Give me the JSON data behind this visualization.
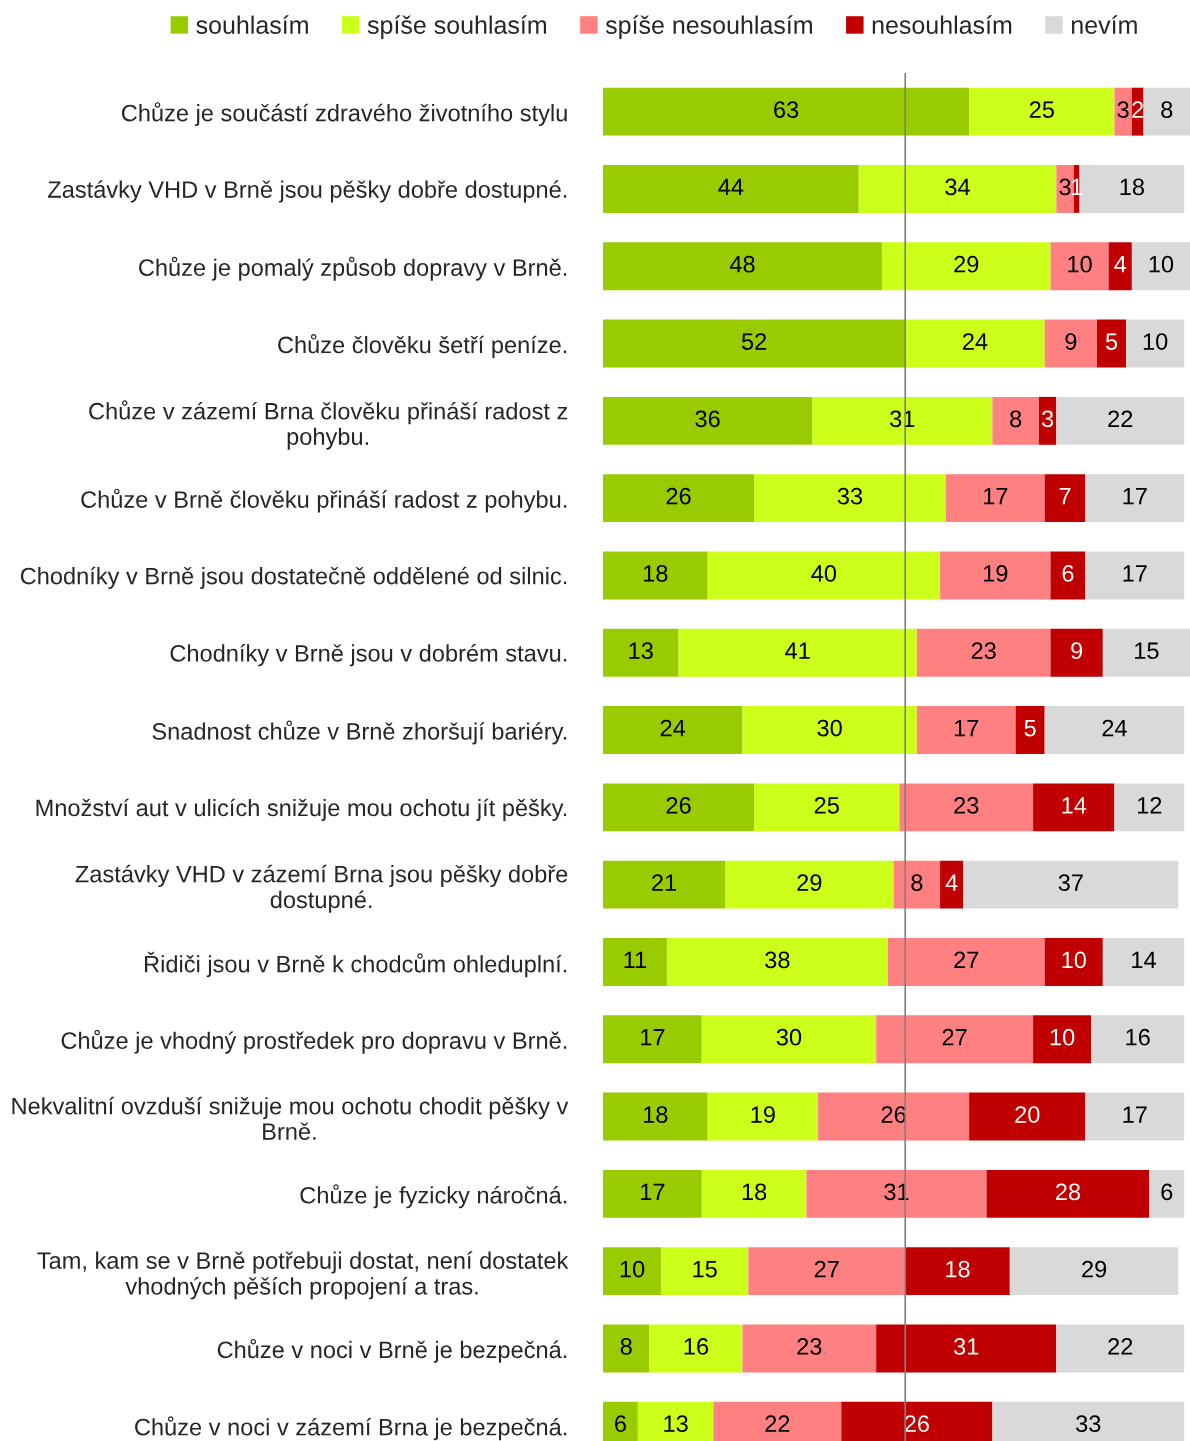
{
  "chart_data": {
    "type": "bar",
    "orientation": "horizontal",
    "stacked": true,
    "data_labels": true,
    "legend": "top",
    "tick_labels": "y",
    "grid": false,
    "xlim": [
      0,
      101
    ],
    "categories": [
      "Chůze je součástí zdravého životního stylu",
      "Zastávky VHD v Brně jsou pěšky dobře dostupné.",
      "Chůze je pomalý způsob dopravy v Brně.",
      "Chůze člověku šetří peníze.",
      "Chůze v zázemí Brna člověku přináší radost z\npohybu.",
      "Chůze v Brně člověku přináší radost z pohybu.",
      "Chodníky v Brně jsou dostatečně oddělené od silnic.",
      "Chodníky v Brně jsou v dobrém stavu.",
      "Snadnost chůze v Brně zhoršují bariéry.",
      "Množství aut v ulicích snižuje mou ochotu jít pěšky.",
      "Zastávky VHD v zázemí Brna jsou pěšky dobře\ndostupné.",
      "Řidiči jsou v Brně k chodcům ohleduplní.",
      "Chůze je vhodný prostředek pro dopravu v Brně.",
      "Nekvalitní ovzduší snižuje mou ochotu chodit pěšky v\nBrně.",
      "Chůze je fyzicky náročná.",
      "Tam, kam se v Brně potřebuji dostat, není dostatek\nvhodných pěších propojení a tras.",
      "Chůze v noci v Brně je bezpečná.",
      "Chůze v noci v zázemí Brna je bezpečná."
    ],
    "series": [
      {
        "name": "souhlasím",
        "color": "#99cc00",
        "values": [
          63,
          44,
          48,
          52,
          36,
          26,
          18,
          13,
          24,
          26,
          21,
          11,
          17,
          18,
          17,
          10,
          8,
          6
        ]
      },
      {
        "name": "spíše souhlasím",
        "color": "#ccff1a",
        "values": [
          25,
          34,
          29,
          24,
          31,
          33,
          40,
          41,
          30,
          25,
          29,
          38,
          30,
          19,
          18,
          15,
          16,
          13
        ]
      },
      {
        "name": "spíše nesouhlasím",
        "color": "#ff8080",
        "values": [
          3,
          3,
          10,
          9,
          8,
          17,
          19,
          23,
          17,
          23,
          8,
          27,
          27,
          26,
          31,
          27,
          23,
          22
        ]
      },
      {
        "name": "nesouhlasím",
        "color": "#c00000",
        "values": [
          2,
          1,
          4,
          5,
          3,
          7,
          6,
          9,
          5,
          14,
          4,
          10,
          10,
          20,
          28,
          18,
          31,
          26
        ]
      },
      {
        "name": "nevím",
        "color": "#d9d9d9",
        "values": [
          8,
          18,
          10,
          10,
          22,
          17,
          17,
          15,
          24,
          12,
          37,
          14,
          16,
          17,
          6,
          29,
          22,
          33
        ]
      }
    ],
    "ref_lines": [
      {
        "axis": "x",
        "value": 52,
        "color": "#808080"
      }
    ]
  }
}
